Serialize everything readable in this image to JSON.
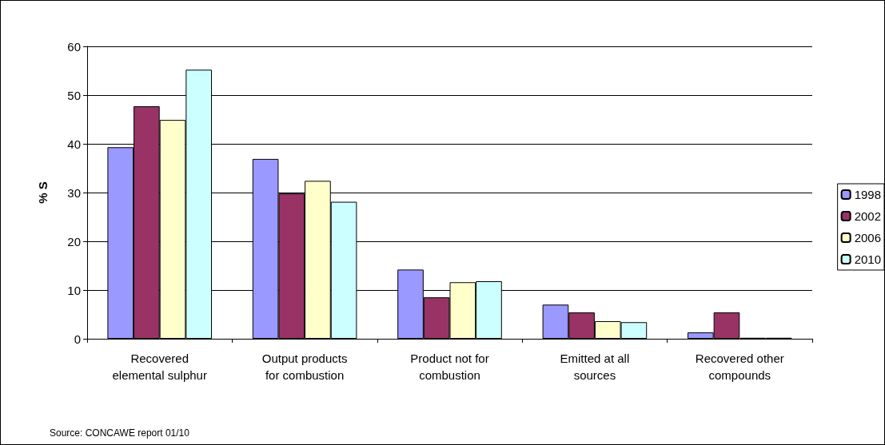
{
  "chart_data": {
    "type": "bar",
    "ylabel": "% S",
    "annotations": [
      "Source: CONCAWE report 01/10"
    ],
    "categories": [
      "Recovered\nelemental sulphur",
      "Output products\nfor combustion",
      "Product not for\ncombustion",
      "Emitted at all\nsources",
      "Recovered other\ncompounds"
    ],
    "series": [
      {
        "name": "1998",
        "color": "#9999ff",
        "values": [
          39.3,
          36.9,
          14.2,
          7.0,
          1.3
        ]
      },
      {
        "name": "2002",
        "color": "#993366",
        "values": [
          47.7,
          29.8,
          8.5,
          5.4,
          5.4
        ]
      },
      {
        "name": "2006",
        "color": "#ffffcc",
        "values": [
          44.9,
          32.4,
          11.6,
          3.6,
          0.2
        ]
      },
      {
        "name": "2010",
        "color": "#ccffff",
        "values": [
          55.2,
          28.1,
          11.8,
          3.4,
          0.2
        ]
      }
    ],
    "ylim": [
      0,
      60
    ],
    "yticks": [
      0,
      10,
      20,
      30,
      40,
      50,
      60
    ],
    "grid": "y",
    "legend": "right"
  }
}
